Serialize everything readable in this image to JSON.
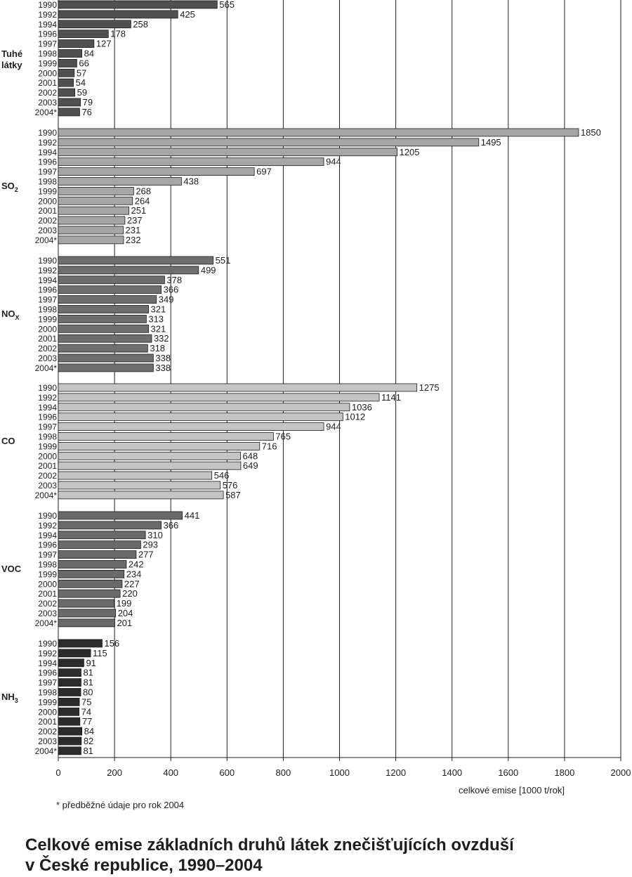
{
  "chart_data": {
    "type": "bar",
    "orientation": "horizontal",
    "title_line1": "Celkové emise základních druhů látek znečišťujících ovzduší",
    "title_line2": "v České republice, 1990–2004",
    "xlabel": "celkové emise [1000 t/rok]",
    "xlim": [
      0,
      2000
    ],
    "xticks": [
      0,
      200,
      400,
      600,
      800,
      1000,
      1200,
      1400,
      1600,
      1800,
      2000
    ],
    "grid": true,
    "footnote": "* předběžné údaje pro rok 2004",
    "years": [
      "1990",
      "1992",
      "1994",
      "1996",
      "1997",
      "1998",
      "1999",
      "2000",
      "2001",
      "2002",
      "2003",
      "2004*"
    ],
    "groups": [
      {
        "label_lines": [
          "Tuhé",
          "látky"
        ],
        "color": "#505050",
        "values": [
          565,
          425,
          258,
          178,
          127,
          84,
          66,
          57,
          54,
          59,
          79,
          76
        ]
      },
      {
        "label_main": "SO",
        "label_sub": "2",
        "color": "#a6a6a6",
        "values": [
          1850,
          1495,
          1205,
          944,
          697,
          438,
          268,
          264,
          251,
          237,
          231,
          232
        ]
      },
      {
        "label_main": "NO",
        "label_sub": "X",
        "color": "#6e6e6e",
        "values": [
          551,
          499,
          378,
          366,
          349,
          321,
          313,
          321,
          332,
          318,
          338,
          338
        ]
      },
      {
        "label_main": "CO",
        "label_sub": "",
        "color": "#c4c4c4",
        "values": [
          1275,
          1141,
          1036,
          1012,
          944,
          765,
          716,
          648,
          649,
          546,
          576,
          587
        ]
      },
      {
        "label_main": "VOC",
        "label_sub": "",
        "color": "#6a6a6a",
        "values": [
          441,
          366,
          310,
          293,
          277,
          242,
          234,
          227,
          220,
          199,
          204,
          201
        ]
      },
      {
        "label_main": "NH",
        "label_sub": "3",
        "color": "#2b2b2b",
        "values": [
          156,
          115,
          91,
          81,
          81,
          80,
          75,
          74,
          77,
          84,
          82,
          81
        ]
      }
    ]
  }
}
